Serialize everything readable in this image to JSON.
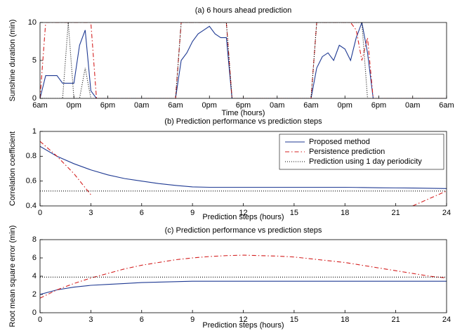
{
  "chart_data": [
    {
      "type": "line",
      "title": "(a) 6 hours ahead prediction",
      "x_label": "Time (hours)",
      "y_label": "Sunshine duration (min)",
      "x": [
        0,
        1,
        2,
        3,
        4,
        5,
        6,
        7,
        8,
        9,
        10,
        11,
        12,
        13,
        14,
        15,
        16,
        17,
        18,
        19,
        20,
        21,
        22,
        23,
        24,
        25,
        26,
        27,
        28,
        29,
        30,
        31,
        32,
        33,
        34,
        35,
        36,
        37,
        38,
        39,
        40,
        41,
        42,
        43,
        44,
        45,
        46,
        47,
        48,
        49,
        50,
        51,
        52,
        53,
        54,
        55,
        56,
        57,
        58,
        59,
        60,
        61,
        62,
        63,
        64,
        65,
        66,
        67,
        68,
        69,
        70,
        71,
        72
      ],
      "xlim": [
        0,
        72
      ],
      "xticks": [
        {
          "value": 0,
          "label": "6am"
        },
        {
          "value": 6,
          "label": "0pm"
        },
        {
          "value": 12,
          "label": "6pm"
        },
        {
          "value": 18,
          "label": "0am"
        },
        {
          "value": 24,
          "label": "6am"
        },
        {
          "value": 30,
          "label": "0pm"
        },
        {
          "value": 36,
          "label": "6pm"
        },
        {
          "value": 42,
          "label": "0am"
        },
        {
          "value": 48,
          "label": "6am"
        },
        {
          "value": 54,
          "label": "0pm"
        },
        {
          "value": 60,
          "label": "6pm"
        },
        {
          "value": 66,
          "label": "0am"
        },
        {
          "value": 72,
          "label": "6am"
        }
      ],
      "ylim": [
        0,
        10
      ],
      "yticks": [
        0,
        5,
        10
      ],
      "series": [
        {
          "color": "#1f3a93",
          "style": "solid",
          "values": [
            0,
            3,
            3,
            3,
            2,
            2,
            2,
            7,
            9,
            1,
            0,
            0,
            0,
            0,
            0,
            0,
            0,
            0,
            0,
            0,
            0,
            0,
            0,
            0,
            0,
            5,
            6,
            7.5,
            8.5,
            9,
            9.5,
            8.5,
            8,
            8,
            0,
            0,
            0,
            0,
            0,
            0,
            0,
            0,
            0,
            0,
            0,
            0,
            0,
            0,
            0,
            4,
            5.5,
            6,
            5,
            7,
            6.5,
            5,
            8,
            10,
            6,
            0,
            0,
            0,
            0,
            0,
            0,
            0,
            0,
            0,
            0,
            0,
            0,
            0,
            0
          ]
        },
        {
          "color": "#d42020",
          "style": "dashdot",
          "values": [
            0,
            10,
            10,
            10,
            10,
            10,
            10,
            10,
            10,
            10,
            0,
            0,
            0,
            0,
            0,
            0,
            0,
            0,
            0,
            0,
            0,
            0,
            0,
            0,
            0,
            10,
            10,
            10,
            10,
            10,
            10,
            10,
            10,
            10,
            0,
            0,
            0,
            0,
            0,
            0,
            0,
            0,
            0,
            0,
            0,
            0,
            0,
            0,
            0,
            10,
            10,
            10,
            10,
            10,
            10,
            10,
            9,
            5,
            8,
            0,
            0,
            0,
            0,
            0,
            0,
            0,
            0,
            0,
            0,
            0,
            0,
            0,
            0
          ]
        },
        {
          "color": "#000000",
          "style": "dotted",
          "values": [
            0,
            0,
            0,
            0,
            0,
            10,
            0,
            0,
            4,
            0,
            0,
            0,
            0,
            0,
            0,
            0,
            0,
            0,
            0,
            0,
            0,
            0,
            0,
            0,
            0,
            10,
            10,
            10,
            10,
            10,
            10,
            10,
            10,
            10,
            0,
            0,
            0,
            0,
            0,
            0,
            0,
            0,
            0,
            0,
            0,
            0,
            0,
            0,
            0,
            10,
            10,
            10,
            10,
            10,
            10,
            10,
            10,
            10,
            0,
            0,
            0,
            0,
            0,
            0,
            0,
            0,
            0,
            0,
            0,
            0,
            0,
            0,
            0
          ]
        }
      ]
    },
    {
      "type": "line",
      "title": "(b) Prediction performance vs prediction steps",
      "x_label": "Prediction steps (hours)",
      "y_label": "Correlation coefficient",
      "x": [
        0,
        1,
        2,
        3,
        4,
        5,
        6,
        7,
        8,
        9,
        10,
        11,
        12,
        13,
        14,
        15,
        16,
        17,
        18,
        19,
        20,
        21,
        22,
        23,
        24
      ],
      "xlim": [
        0,
        24
      ],
      "xticks": [
        0,
        3,
        6,
        9,
        12,
        15,
        18,
        21,
        24
      ],
      "ylim": [
        0.4,
        1
      ],
      "yticks": [
        0.4,
        0.6,
        0.8,
        1
      ],
      "legend": "upper right",
      "series": [
        {
          "name": "Proposed method",
          "color": "#1f3a93",
          "style": "solid",
          "values": [
            0.88,
            0.8,
            0.74,
            0.69,
            0.65,
            0.62,
            0.6,
            0.58,
            0.565,
            0.553,
            0.55,
            0.55,
            0.55,
            0.55,
            0.55,
            0.55,
            0.55,
            0.55,
            0.55,
            0.548,
            0.546,
            0.545,
            0.544,
            0.542,
            0.54
          ]
        },
        {
          "name": "Persistence prediction",
          "color": "#d42020",
          "style": "dashdot",
          "values": [
            0.92,
            0.8,
            0.66,
            0.49,
            null,
            null,
            null,
            null,
            null,
            null,
            null,
            null,
            null,
            null,
            null,
            null,
            null,
            null,
            null,
            null,
            null,
            null,
            0.4,
            0.46,
            0.52
          ]
        },
        {
          "name": "Prediction using 1 day periodicity",
          "color": "#000000",
          "style": "dotted",
          "values": [
            0.52,
            0.52,
            0.52,
            0.52,
            0.52,
            0.52,
            0.52,
            0.52,
            0.52,
            0.52,
            0.52,
            0.52,
            0.52,
            0.52,
            0.52,
            0.52,
            0.52,
            0.52,
            0.52,
            0.52,
            0.52,
            0.52,
            0.52,
            0.52,
            0.52
          ]
        }
      ]
    },
    {
      "type": "line",
      "title": "(c) Prediction performance vs prediction steps",
      "x_label": "Prediction steps (hours)",
      "y_label": "Root mean square error (min)",
      "x": [
        0,
        1,
        2,
        3,
        4,
        5,
        6,
        7,
        8,
        9,
        10,
        11,
        12,
        13,
        14,
        15,
        16,
        17,
        18,
        19,
        20,
        21,
        22,
        23,
        24
      ],
      "xlim": [
        0,
        24
      ],
      "xticks": [
        0,
        3,
        6,
        9,
        12,
        15,
        18,
        21,
        24
      ],
      "ylim": [
        0,
        8
      ],
      "yticks": [
        0,
        2,
        4,
        6,
        8
      ],
      "series": [
        {
          "color": "#1f3a93",
          "style": "solid",
          "values": [
            2.0,
            2.5,
            2.8,
            3.0,
            3.1,
            3.2,
            3.3,
            3.35,
            3.4,
            3.45,
            3.45,
            3.45,
            3.45,
            3.45,
            3.45,
            3.45,
            3.45,
            3.45,
            3.45,
            3.45,
            3.45,
            3.45,
            3.45,
            3.45,
            3.45
          ]
        },
        {
          "color": "#d42020",
          "style": "dashdot",
          "values": [
            1.6,
            2.5,
            3.2,
            3.8,
            4.3,
            4.8,
            5.2,
            5.5,
            5.8,
            6.0,
            6.15,
            6.25,
            6.3,
            6.25,
            6.2,
            6.1,
            5.9,
            5.7,
            5.5,
            5.2,
            4.9,
            4.6,
            4.3,
            4.0,
            3.8
          ]
        },
        {
          "color": "#000000",
          "style": "dotted",
          "values": [
            3.9,
            3.9,
            3.9,
            3.9,
            3.9,
            3.9,
            3.9,
            3.9,
            3.9,
            3.9,
            3.9,
            3.9,
            3.9,
            3.9,
            3.9,
            3.9,
            3.9,
            3.9,
            3.9,
            3.9,
            3.9,
            3.9,
            3.9,
            3.9,
            3.9
          ]
        }
      ]
    }
  ]
}
